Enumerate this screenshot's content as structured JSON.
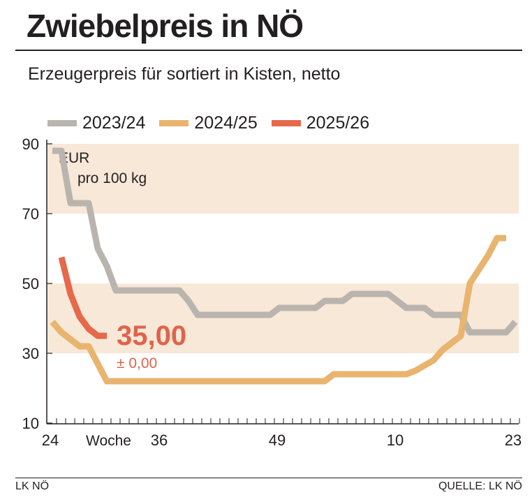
{
  "header": {
    "title": "Zwiebelpreis in NÖ",
    "subtitle": "Erzeugerpreis für sortiert in Kisten, netto"
  },
  "footer": {
    "left": "LK NÖ",
    "right": "QUELLE: LK NÖ"
  },
  "chart_data": {
    "type": "line",
    "unit_label": [
      "EUR",
      "pro 100 kg"
    ],
    "xlabel": "Woche",
    "x_weeks": [
      24,
      25,
      26,
      27,
      28,
      29,
      30,
      31,
      32,
      33,
      34,
      35,
      36,
      37,
      38,
      39,
      40,
      41,
      42,
      43,
      44,
      45,
      46,
      47,
      48,
      49,
      50,
      51,
      52,
      1,
      2,
      3,
      4,
      5,
      6,
      7,
      8,
      9,
      10,
      11,
      12,
      13,
      14,
      15,
      16,
      17,
      18,
      19,
      20,
      21,
      22,
      23
    ],
    "x_tick_labels": [
      "24",
      "36",
      "49",
      "10",
      "23"
    ],
    "y_tick_labels": [
      "90",
      "70",
      "50",
      "30",
      "10"
    ],
    "ylim": [
      10,
      90
    ],
    "shaded_bands": [
      [
        70,
        90
      ],
      [
        30,
        50
      ]
    ],
    "legend_position": "top",
    "series": [
      {
        "name": "2023/24",
        "color": "#bab4ae",
        "values": [
          88,
          88,
          73,
          73,
          73,
          60,
          55,
          48,
          48,
          48,
          48,
          48,
          48,
          48,
          48,
          45,
          41,
          41,
          41,
          41,
          41,
          41,
          41,
          41,
          41,
          43,
          43,
          43,
          43,
          43,
          45,
          45,
          45,
          47,
          47,
          47,
          47,
          47,
          45,
          43,
          43,
          43,
          41,
          41,
          41,
          41,
          36,
          36,
          36,
          36,
          36,
          39
        ]
      },
      {
        "name": "2024/25",
        "color": "#e8b46e",
        "values": [
          39,
          36,
          34,
          32,
          32,
          27,
          22,
          22,
          22,
          22,
          22,
          22,
          22,
          22,
          22,
          22,
          22,
          22,
          22,
          22,
          22,
          22,
          22,
          22,
          22,
          22,
          22,
          22,
          22,
          22,
          22,
          24,
          24,
          24,
          24,
          24,
          24,
          24,
          24,
          24,
          25,
          26.5,
          28,
          31,
          33,
          35,
          50,
          54,
          58,
          63,
          63,
          null
        ]
      },
      {
        "name": "2025/26",
        "color": "#e5694a",
        "values": [
          null,
          57.5,
          47,
          40.5,
          37,
          35,
          35
        ]
      }
    ],
    "annotation": {
      "value": "35,00",
      "change": "± 0,00"
    }
  }
}
